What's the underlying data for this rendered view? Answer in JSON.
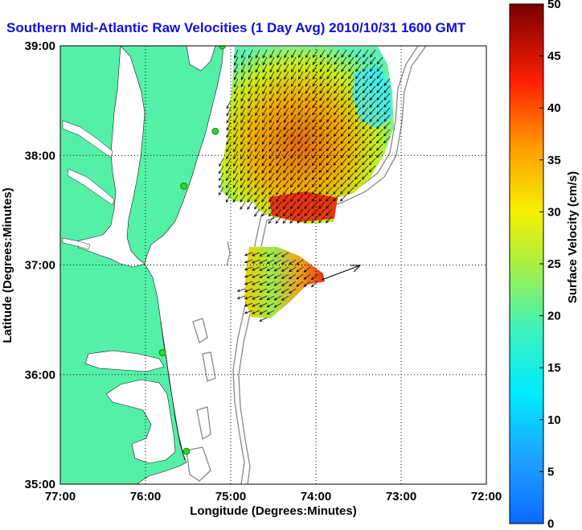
{
  "title": "Southern Mid-Atlantic Raw Velocities (1 Day Avg) 2010/10/31 1600 GMT",
  "xlabel": "Longitude (Degrees:Minutes)",
  "ylabel": "Latitude (Degrees:Minutes)",
  "x_ticks": [
    "77:00",
    "76:00",
    "75:00",
    "74:00",
    "73:00",
    "72:00"
  ],
  "y_ticks": [
    "39:00",
    "38:00",
    "37:00",
    "36:00",
    "35:00"
  ],
  "colorbar": {
    "label": "Surface Velocity (cm/s)",
    "ticks": [
      "0",
      "5",
      "10",
      "15",
      "20",
      "25",
      "30",
      "35",
      "40",
      "45",
      "50"
    ],
    "range": [
      0,
      50
    ]
  },
  "colors": {
    "land": "#55f0a8",
    "water": "#ffffff",
    "title": "#1010e0",
    "bathymetry": "#888888",
    "station": "#22dd22"
  },
  "map": {
    "lon_range": [
      -77,
      -72
    ],
    "lat_range": [
      35,
      39
    ],
    "grid": true
  },
  "stations": [
    {
      "lon": -75.1,
      "lat": 39.0
    },
    {
      "lon": -75.18,
      "lat": 38.22
    },
    {
      "lon": -75.55,
      "lat": 37.72
    },
    {
      "lon": -75.8,
      "lat": 36.2
    },
    {
      "lon": -75.52,
      "lat": 35.3
    }
  ]
}
